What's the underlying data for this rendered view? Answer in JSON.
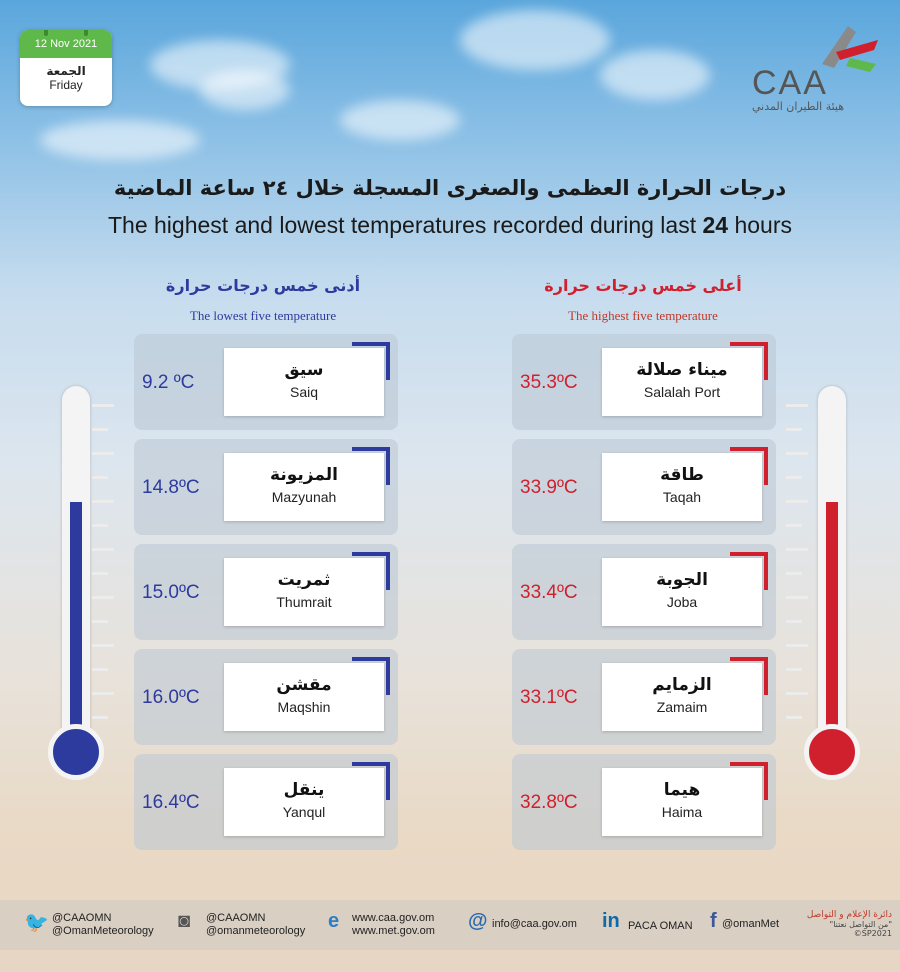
{
  "date_card": {
    "date": "12 Nov 2021",
    "day_ar": "الجمعة",
    "day_en": "Friday"
  },
  "logo": {
    "text": "CAA",
    "sub_ar": "هيئة الطيران المدني"
  },
  "title_ar": "درجات الحرارة العظمى والصغرى المسجلة خلال ٢٤ ساعة الماضية",
  "title_en_prefix": "The highest and lowest temperatures recorded during last ",
  "title_en_bold": "24",
  "title_en_suffix": " hours",
  "lowest": {
    "heading_ar": "أدنى خمس درجات حرارة",
    "heading_en": "The lowest five temperature",
    "color": "#2e3b9e",
    "rows": [
      {
        "name_ar": "سيق",
        "name_en": "Saiq",
        "temp": "9.2 ºC"
      },
      {
        "name_ar": "المزيونة",
        "name_en": "Mazyunah",
        "temp": "14.8ºC"
      },
      {
        "name_ar": "ثمريت",
        "name_en": "Thumrait",
        "temp": "15.0ºC"
      },
      {
        "name_ar": "مقشن",
        "name_en": "Maqshin",
        "temp": "16.0ºC"
      },
      {
        "name_ar": "ينقل",
        "name_en": "Yanqul",
        "temp": "16.4ºC"
      }
    ]
  },
  "highest": {
    "heading_ar": "أعلى خمس درجات حرارة",
    "heading_en": "The highest five temperature",
    "color": "#d0202e",
    "rows": [
      {
        "name_ar": "ميناء صلالة",
        "name_en": "Salalah Port",
        "temp": "35.3ºC"
      },
      {
        "name_ar": "طاقة",
        "name_en": "Taqah",
        "temp": "33.9ºC"
      },
      {
        "name_ar": "الجوبة",
        "name_en": "Joba",
        "temp": "33.4ºC"
      },
      {
        "name_ar": "الزمايم",
        "name_en": "Zamaim",
        "temp": "33.1ºC"
      },
      {
        "name_ar": "هيما",
        "name_en": "Haima",
        "temp": "32.8ºC"
      }
    ]
  },
  "footer": {
    "twitter": [
      "@CAAOMN",
      "@OmanMeteorology"
    ],
    "instagram": [
      "@CAAOMN",
      "@omanmeteorology"
    ],
    "web": [
      "www.caa.gov.om",
      "www.met.gov.om"
    ],
    "email": "info@caa.gov.om",
    "linkedin": "PACA OMAN",
    "facebook": "@omanMet",
    "credit_ar": "دائرة الإعلام و التواصل",
    "credit_sub": "\"من التواصل نعتنا\"",
    "credit_code": "©SP2021"
  },
  "icons": {
    "twitter": "twitter-icon",
    "instagram": "instagram-icon",
    "web": "internet-explorer-icon",
    "email": "at-icon",
    "linkedin": "linkedin-icon",
    "facebook": "facebook-icon"
  }
}
